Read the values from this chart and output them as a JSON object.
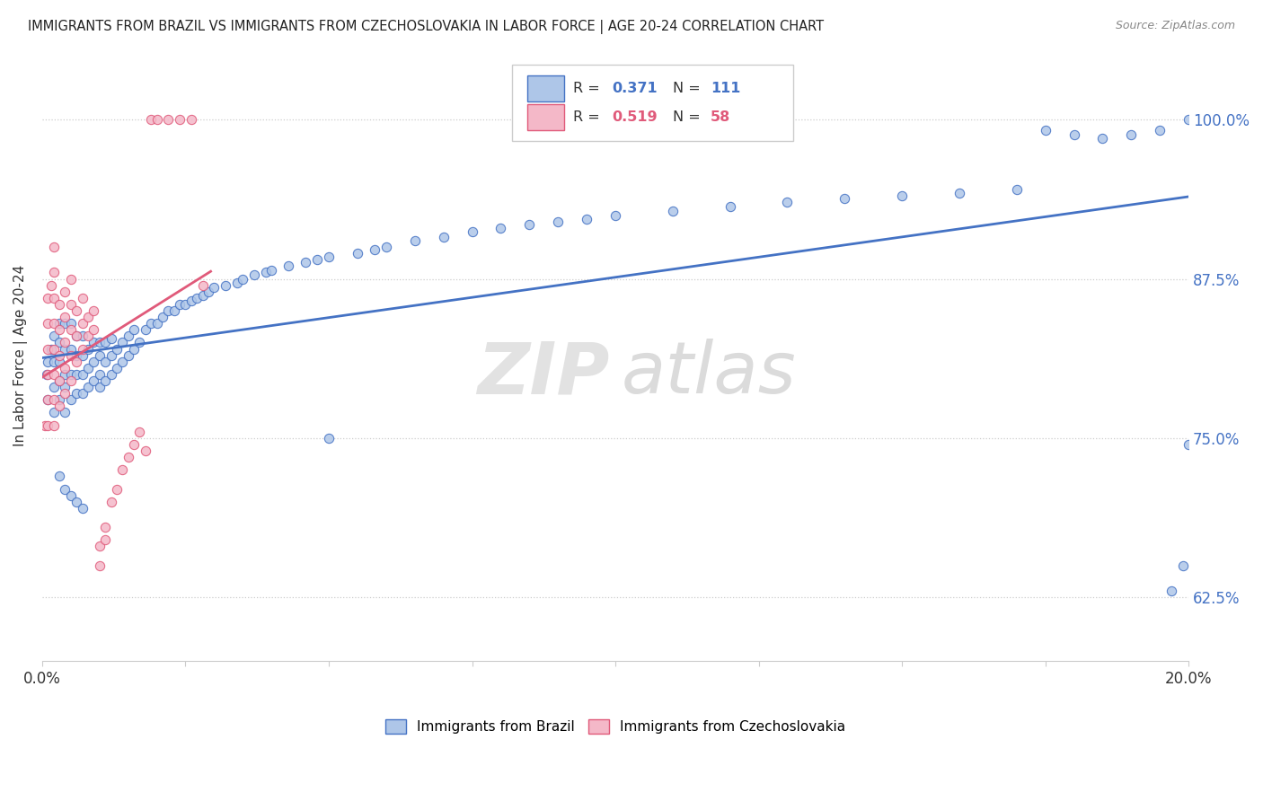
{
  "title": "IMMIGRANTS FROM BRAZIL VS IMMIGRANTS FROM CZECHOSLOVAKIA IN LABOR FORCE | AGE 20-24 CORRELATION CHART",
  "source": "Source: ZipAtlas.com",
  "ylabel": "In Labor Force | Age 20-24",
  "yticks": [
    0.625,
    0.75,
    0.875,
    1.0
  ],
  "ytick_labels": [
    "62.5%",
    "75.0%",
    "87.5%",
    "100.0%"
  ],
  "xlim": [
    0.0,
    0.2
  ],
  "ylim": [
    0.575,
    1.055
  ],
  "brazil_R": 0.371,
  "brazil_N": 111,
  "czech_R": 0.519,
  "czech_N": 58,
  "brazil_color": "#aec6e8",
  "brazil_line_color": "#4472c4",
  "czech_color": "#f4b8c8",
  "czech_line_color": "#e05a7a",
  "legend_brazil": "Immigrants from Brazil",
  "legend_czech": "Immigrants from Czechoslovakia",
  "brazil_x": [
    0.0008,
    0.001,
    0.001,
    0.0015,
    0.002,
    0.002,
    0.002,
    0.002,
    0.003,
    0.003,
    0.003,
    0.003,
    0.003,
    0.004,
    0.004,
    0.004,
    0.004,
    0.004,
    0.005,
    0.005,
    0.005,
    0.005,
    0.006,
    0.006,
    0.006,
    0.006,
    0.007,
    0.007,
    0.007,
    0.007,
    0.008,
    0.008,
    0.008,
    0.009,
    0.009,
    0.009,
    0.01,
    0.01,
    0.01,
    0.01,
    0.011,
    0.011,
    0.011,
    0.012,
    0.012,
    0.012,
    0.013,
    0.013,
    0.014,
    0.014,
    0.015,
    0.015,
    0.016,
    0.016,
    0.017,
    0.018,
    0.019,
    0.02,
    0.021,
    0.022,
    0.023,
    0.024,
    0.025,
    0.026,
    0.027,
    0.028,
    0.029,
    0.03,
    0.032,
    0.034,
    0.035,
    0.037,
    0.039,
    0.04,
    0.043,
    0.046,
    0.048,
    0.05,
    0.055,
    0.058,
    0.06,
    0.065,
    0.07,
    0.075,
    0.08,
    0.085,
    0.09,
    0.095,
    0.1,
    0.11,
    0.12,
    0.13,
    0.14,
    0.15,
    0.16,
    0.17,
    0.175,
    0.18,
    0.185,
    0.19,
    0.195,
    0.197,
    0.199,
    0.2,
    0.2,
    0.003,
    0.004,
    0.005,
    0.006,
    0.007,
    0.05
  ],
  "brazil_y": [
    0.8,
    0.78,
    0.81,
    0.82,
    0.79,
    0.81,
    0.83,
    0.77,
    0.795,
    0.81,
    0.825,
    0.84,
    0.78,
    0.8,
    0.82,
    0.84,
    0.77,
    0.79,
    0.78,
    0.8,
    0.82,
    0.84,
    0.785,
    0.8,
    0.815,
    0.83,
    0.785,
    0.8,
    0.815,
    0.83,
    0.79,
    0.805,
    0.82,
    0.795,
    0.81,
    0.825,
    0.79,
    0.8,
    0.815,
    0.825,
    0.795,
    0.81,
    0.825,
    0.8,
    0.815,
    0.828,
    0.805,
    0.82,
    0.81,
    0.825,
    0.815,
    0.83,
    0.82,
    0.835,
    0.825,
    0.835,
    0.84,
    0.84,
    0.845,
    0.85,
    0.85,
    0.855,
    0.855,
    0.858,
    0.86,
    0.862,
    0.865,
    0.868,
    0.87,
    0.872,
    0.875,
    0.878,
    0.88,
    0.882,
    0.885,
    0.888,
    0.89,
    0.892,
    0.895,
    0.898,
    0.9,
    0.905,
    0.908,
    0.912,
    0.915,
    0.918,
    0.92,
    0.922,
    0.925,
    0.928,
    0.932,
    0.935,
    0.938,
    0.94,
    0.942,
    0.945,
    0.992,
    0.988,
    0.985,
    0.988,
    0.992,
    0.63,
    0.65,
    0.745,
    1.0,
    0.72,
    0.71,
    0.705,
    0.7,
    0.695,
    0.75
  ],
  "czech_x": [
    0.0005,
    0.001,
    0.001,
    0.001,
    0.001,
    0.001,
    0.001,
    0.0015,
    0.002,
    0.002,
    0.002,
    0.002,
    0.002,
    0.002,
    0.002,
    0.002,
    0.003,
    0.003,
    0.003,
    0.003,
    0.003,
    0.004,
    0.004,
    0.004,
    0.004,
    0.004,
    0.005,
    0.005,
    0.005,
    0.005,
    0.005,
    0.006,
    0.006,
    0.006,
    0.007,
    0.007,
    0.007,
    0.008,
    0.008,
    0.009,
    0.009,
    0.01,
    0.01,
    0.011,
    0.011,
    0.012,
    0.013,
    0.014,
    0.015,
    0.016,
    0.017,
    0.018,
    0.019,
    0.02,
    0.022,
    0.024,
    0.026,
    0.028
  ],
  "czech_y": [
    0.76,
    0.76,
    0.78,
    0.8,
    0.82,
    0.84,
    0.86,
    0.87,
    0.76,
    0.78,
    0.8,
    0.82,
    0.84,
    0.86,
    0.88,
    0.9,
    0.775,
    0.795,
    0.815,
    0.835,
    0.855,
    0.785,
    0.805,
    0.825,
    0.845,
    0.865,
    0.795,
    0.815,
    0.835,
    0.855,
    0.875,
    0.81,
    0.83,
    0.85,
    0.82,
    0.84,
    0.86,
    0.83,
    0.845,
    0.835,
    0.85,
    0.65,
    0.665,
    0.67,
    0.68,
    0.7,
    0.71,
    0.725,
    0.735,
    0.745,
    0.755,
    0.74,
    1.0,
    1.0,
    1.0,
    1.0,
    1.0,
    0.87
  ]
}
